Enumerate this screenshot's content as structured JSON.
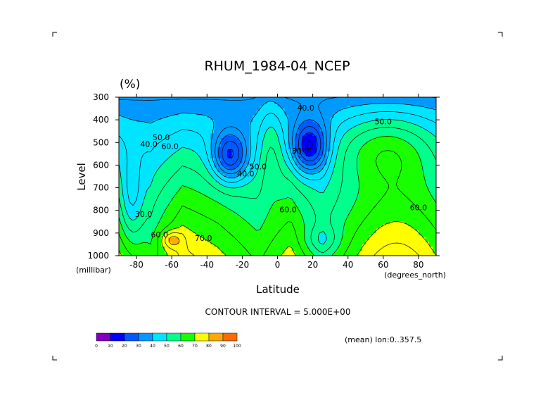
{
  "chart_data": {
    "type": "heatmap",
    "title": "RHUM_1984-04_NCEP",
    "units_label": "(%)",
    "xlabel": "Latitude",
    "ylabel": "Level",
    "x_unit_label": "(degrees_north)",
    "y_unit_label": "(millibar)",
    "xlim": [
      -90,
      90
    ],
    "ylim": [
      300,
      1000
    ],
    "x_ticks": [
      -80,
      -60,
      -40,
      -20,
      0,
      20,
      40,
      60,
      80
    ],
    "x_tick_labels": [
      "-80",
      "-60",
      "-40",
      "-20",
      "0",
      "20",
      "40",
      "60",
      "80"
    ],
    "y_ticks": [
      300,
      400,
      500,
      600,
      700,
      800,
      900,
      1000
    ],
    "y_tick_labels": [
      "300",
      "400",
      "500",
      "600",
      "700",
      "800",
      "900",
      "1000"
    ],
    "contour_interval_text": "CONTOUR INTERVAL = 5.000E+00",
    "mean_text": "(mean) lon:0..357.5",
    "colorbar": {
      "levels": [
        0,
        10,
        20,
        30,
        40,
        50,
        60,
        70,
        80,
        90,
        100
      ],
      "level_labels": [
        "0",
        "10",
        "20",
        "30",
        "40",
        "50",
        "60",
        "70",
        "80",
        "90",
        "100"
      ],
      "colors": [
        "#7f00c0",
        "#0000ff",
        "#005aff",
        "#0099ff",
        "#00e5ff",
        "#00ff8c",
        "#19ff00",
        "#ffff00",
        "#ffaa00",
        "#ff6a00",
        "#ff0000"
      ]
    },
    "contour_labels": [
      {
        "text": "40.0",
        "lat": 16,
        "lev": 350
      },
      {
        "text": "50.0",
        "lat": 60,
        "lev": 410
      },
      {
        "text": "30.0",
        "lat": 13,
        "lev": 540
      },
      {
        "text": "40.0",
        "lat": -18,
        "lev": 640
      },
      {
        "text": "50.0",
        "lat": -11,
        "lev": 610
      },
      {
        "text": "60.0",
        "lat": 6,
        "lev": 800
      },
      {
        "text": "60.0",
        "lat": 80,
        "lev": 790
      },
      {
        "text": "70.0",
        "lat": -42,
        "lev": 925
      },
      {
        "text": "50.0",
        "lat": -66,
        "lev": 480
      },
      {
        "text": "40.0",
        "lat": -73,
        "lev": 510
      },
      {
        "text": "60.0",
        "lat": -61,
        "lev": 520
      },
      {
        "text": "30.0",
        "lat": -76,
        "lev": 820
      },
      {
        "text": "60.0",
        "lat": -67,
        "lev": 910
      }
    ]
  }
}
